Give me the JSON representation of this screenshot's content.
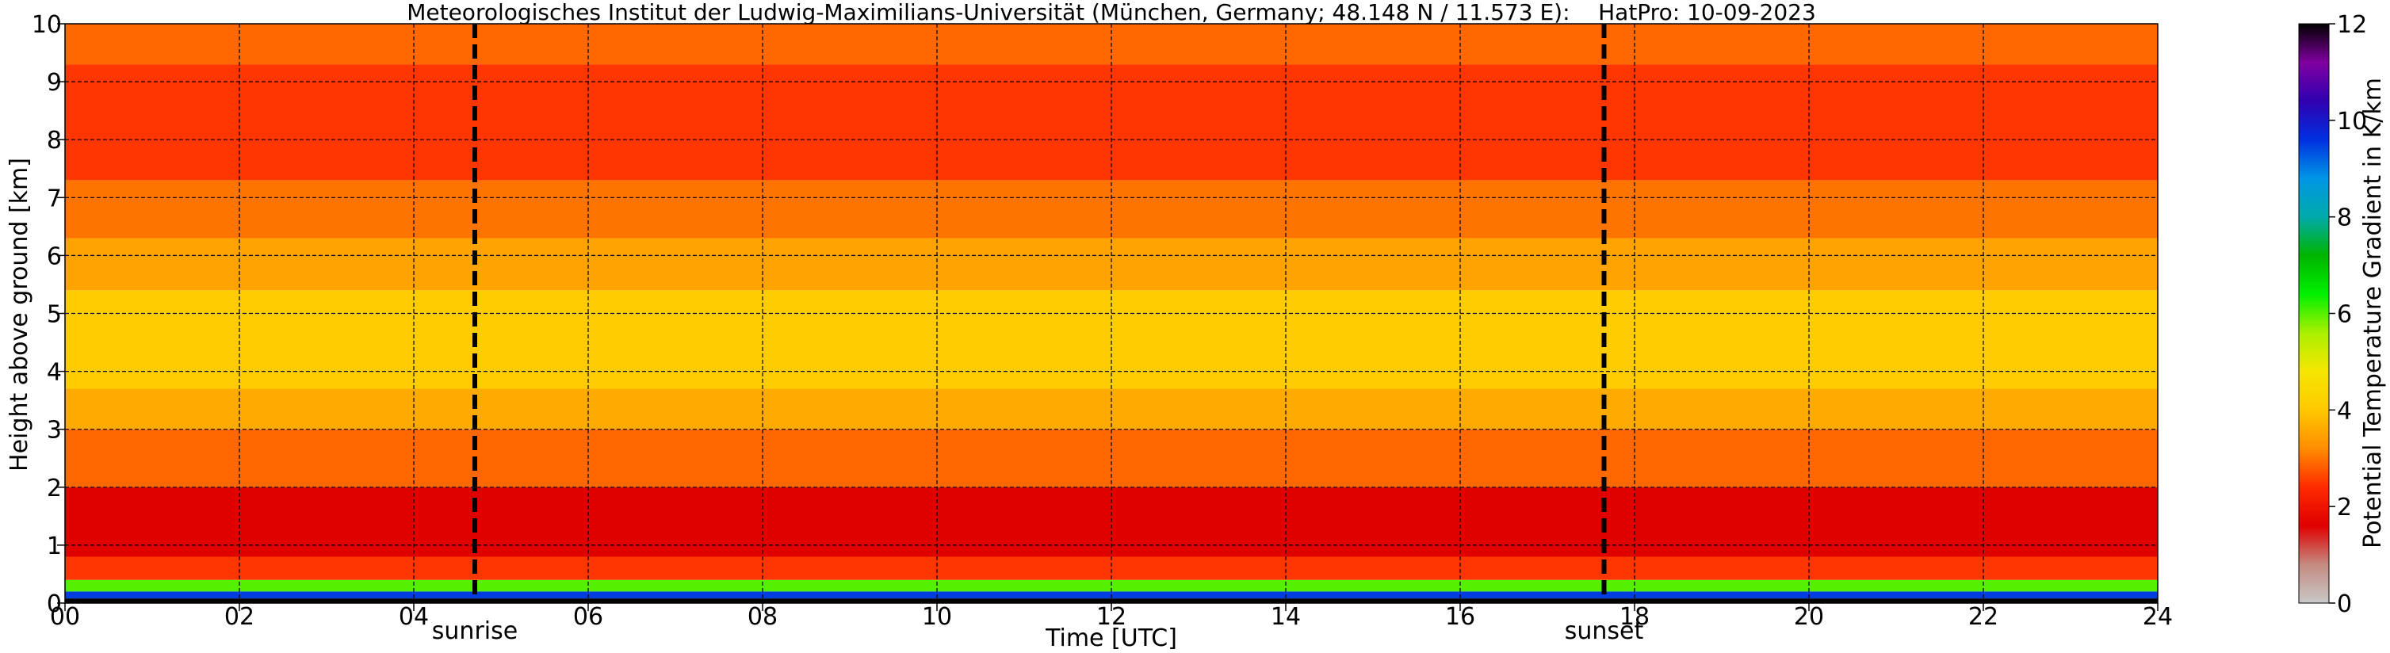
{
  "chart_data": {
    "type": "heatmap",
    "title": "Meteorologisches Institut der Ludwig-Maximilians-Universität (München, Germany; 48.148 N / 11.573 E):    HatPro: 10-09-2023",
    "xlabel": "Time [UTC]",
    "ylabel": "Height above ground [km]",
    "colorbar_label": "Potential Temperature Gradient in K/km",
    "xlim": [
      0,
      24
    ],
    "ylim": [
      0,
      10
    ],
    "clim": [
      0,
      12
    ],
    "xticks": [
      0,
      2,
      4,
      6,
      8,
      10,
      12,
      14,
      16,
      18,
      20,
      22,
      24
    ],
    "xtick_labels": [
      "00",
      "02",
      "04",
      "06",
      "08",
      "10",
      "12",
      "14",
      "16",
      "18",
      "20",
      "22",
      "24"
    ],
    "yticks": [
      0,
      1,
      2,
      3,
      4,
      5,
      6,
      7,
      8,
      9,
      10
    ],
    "ytick_labels": [
      "0",
      "1",
      "2",
      "3",
      "4",
      "5",
      "6",
      "7",
      "8",
      "9",
      "10"
    ],
    "cbar_ticks": [
      0,
      2,
      4,
      6,
      8,
      10,
      12
    ],
    "cbar_tick_labels": [
      "0",
      "2",
      "4",
      "6",
      "8",
      "10",
      "12"
    ],
    "grid": true,
    "markers": [
      {
        "label": "sunrise",
        "time": 4.7
      },
      {
        "label": "sunset",
        "time": 17.65
      }
    ],
    "field_layers": [
      {
        "z": [
          0.0,
          0.08
        ],
        "value": 12
      },
      {
        "z": [
          0.08,
          0.2
        ],
        "value": 9.5
      },
      {
        "z": [
          0.2,
          0.4
        ],
        "value": 6
      },
      {
        "z": [
          0.4,
          0.8
        ],
        "value": 2.5
      },
      {
        "z": [
          0.8,
          2.0
        ],
        "value": 1.6
      },
      {
        "z": [
          2.0,
          3.0
        ],
        "value": 2.9
      },
      {
        "z": [
          3.0,
          3.7
        ],
        "value": 3.6
      },
      {
        "z": [
          3.7,
          5.4
        ],
        "value": 4.1
      },
      {
        "z": [
          5.4,
          6.3
        ],
        "value": 3.5
      },
      {
        "z": [
          6.3,
          7.3
        ],
        "value": 3.0
      },
      {
        "z": [
          7.3,
          9.3
        ],
        "value": 2.5
      },
      {
        "z": [
          9.3,
          10.0
        ],
        "value": 2.9
      }
    ]
  },
  "colors": {
    "colormap": [
      "#c8c8c8",
      "#c48a80",
      "#e00000",
      "#ff2a00",
      "#ff8c00",
      "#ffc800",
      "#f5e600",
      "#aaf000",
      "#00f000",
      "#00b400",
      "#00aaaa",
      "#0096e6",
      "#0030e0",
      "#3000b0",
      "#8000a0",
      "#000000"
    ],
    "grid_line": "#000000",
    "marker_line": "#000000"
  }
}
